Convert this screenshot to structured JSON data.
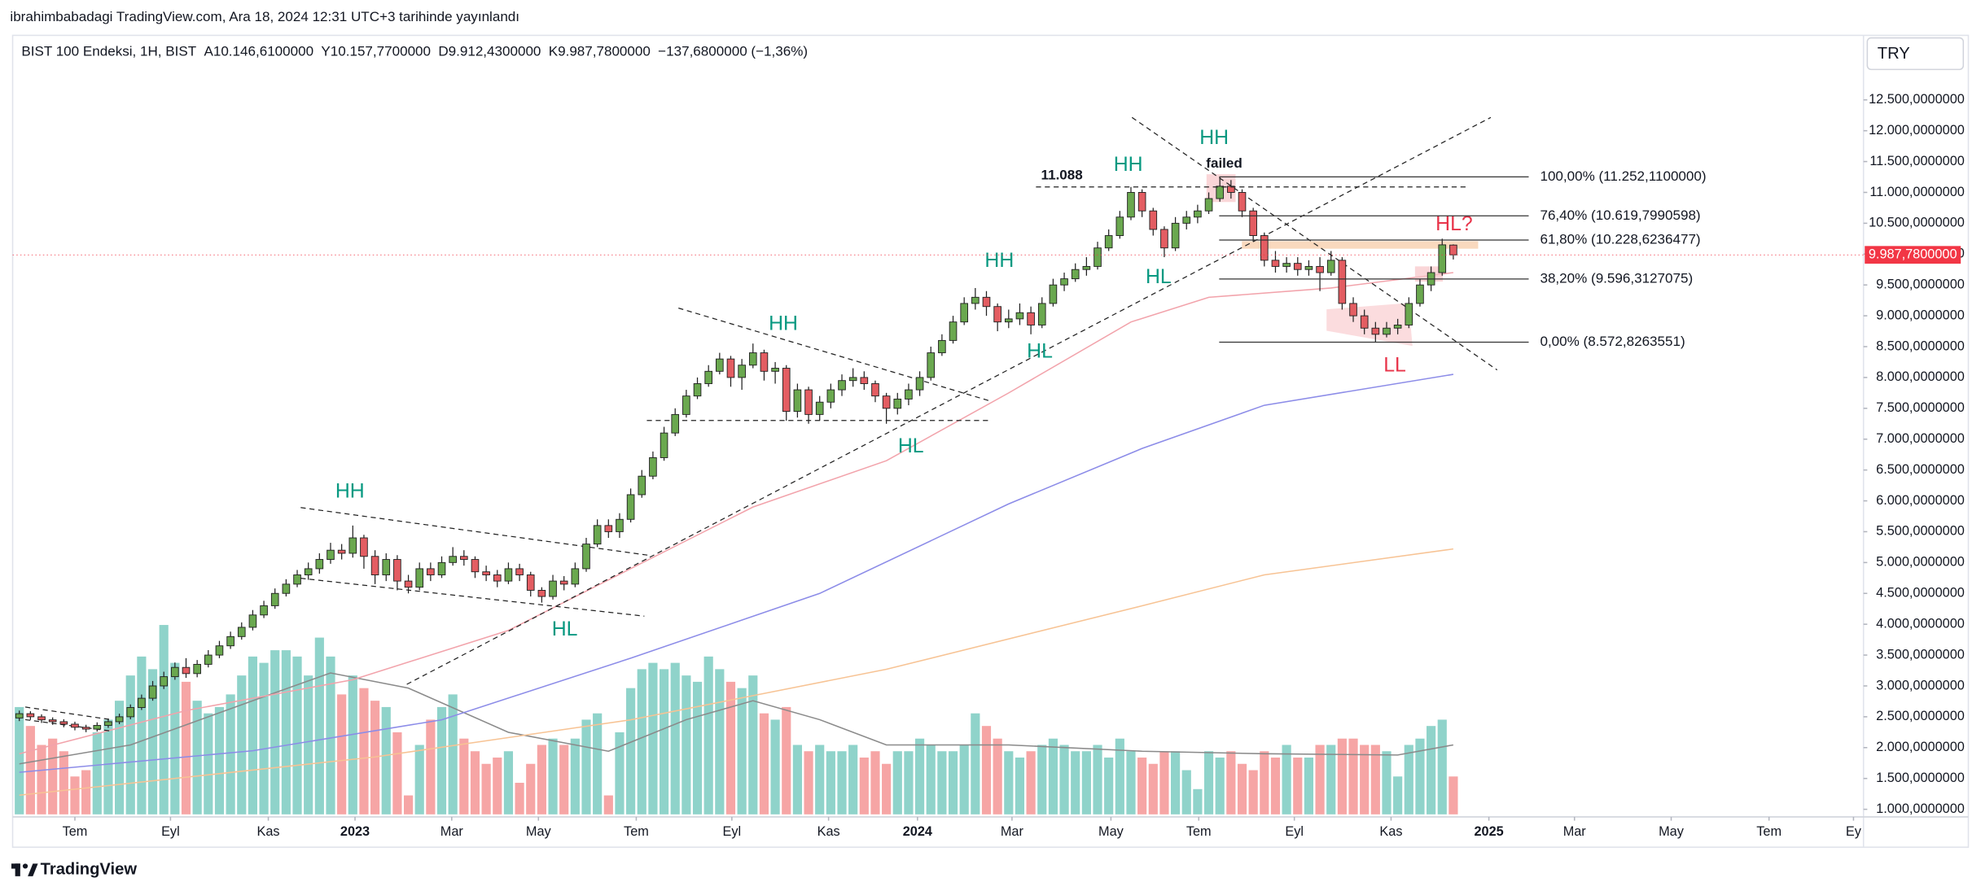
{
  "header": {
    "publisher": "ibrahimbabadagi TradingView.com, Ara 18, 2024 12:31 UTC+3 tarihinde yayınlandı",
    "currency": "TRY",
    "brand": "TradingView"
  },
  "chart_data": {
    "type": "candlestick",
    "title": "BIST 100 Endeksi, 1H, BIST",
    "ohlc_legend": [
      {
        "label": "A",
        "value": "10.146,6100000"
      },
      {
        "label": "Y",
        "value": "10.157,7700000"
      },
      {
        "label": "D",
        "value": "9.912,4300000"
      },
      {
        "label": "K",
        "value": "9.987,7800000"
      }
    ],
    "change": "−137,6800000 (−1,36%)",
    "up_color": "#6aa84f",
    "down_color": "#e35d62",
    "candles": [
      [
        2480,
        2600,
        2430,
        2550
      ],
      [
        2550,
        2590,
        2450,
        2500
      ],
      [
        2500,
        2540,
        2400,
        2450
      ],
      [
        2450,
        2490,
        2370,
        2420
      ],
      [
        2420,
        2460,
        2330,
        2380
      ],
      [
        2380,
        2420,
        2280,
        2330
      ],
      [
        2330,
        2370,
        2250,
        2300
      ],
      [
        2300,
        2410,
        2260,
        2360
      ],
      [
        2360,
        2470,
        2320,
        2420
      ],
      [
        2420,
        2550,
        2380,
        2500
      ],
      [
        2500,
        2700,
        2460,
        2650
      ],
      [
        2650,
        2860,
        2610,
        2800
      ],
      [
        2800,
        3080,
        2760,
        3000
      ],
      [
        3000,
        3230,
        2950,
        3150
      ],
      [
        3150,
        3380,
        3100,
        3300
      ],
      [
        3300,
        3450,
        3130,
        3200
      ],
      [
        3200,
        3420,
        3140,
        3350
      ],
      [
        3350,
        3580,
        3300,
        3500
      ],
      [
        3500,
        3730,
        3450,
        3650
      ],
      [
        3650,
        3880,
        3600,
        3800
      ],
      [
        3800,
        4030,
        3750,
        3950
      ],
      [
        3950,
        4230,
        3900,
        4150
      ],
      [
        4150,
        4380,
        4100,
        4300
      ],
      [
        4300,
        4580,
        4250,
        4500
      ],
      [
        4500,
        4730,
        4450,
        4650
      ],
      [
        4650,
        4880,
        4600,
        4800
      ],
      [
        4800,
        5000,
        4720,
        4900
      ],
      [
        4900,
        5150,
        4820,
        5050
      ],
      [
        5050,
        5320,
        4980,
        5200
      ],
      [
        5200,
        5300,
        5050,
        5150
      ],
      [
        5150,
        5600,
        5080,
        5400
      ],
      [
        5400,
        5450,
        4900,
        5100
      ],
      [
        5100,
        5200,
        4650,
        4800
      ],
      [
        4800,
        5150,
        4700,
        5050
      ],
      [
        5050,
        5120,
        4550,
        4700
      ],
      [
        4700,
        4800,
        4500,
        4600
      ],
      [
        4600,
        5000,
        4550,
        4900
      ],
      [
        4900,
        5000,
        4700,
        4800
      ],
      [
        4800,
        5100,
        4750,
        5000
      ],
      [
        5000,
        5250,
        4950,
        5100
      ],
      [
        5100,
        5200,
        4950,
        5050
      ],
      [
        5050,
        5100,
        4750,
        4850
      ],
      [
        4850,
        4950,
        4700,
        4800
      ],
      [
        4800,
        4880,
        4600,
        4700
      ],
      [
        4700,
        5000,
        4650,
        4900
      ],
      [
        4900,
        4980,
        4700,
        4800
      ],
      [
        4800,
        4850,
        4450,
        4550
      ],
      [
        4550,
        4600,
        4350,
        4450
      ],
      [
        4450,
        4800,
        4400,
        4700
      ],
      [
        4700,
        4780,
        4550,
        4650
      ],
      [
        4650,
        5000,
        4600,
        4900
      ],
      [
        4900,
        5400,
        4850,
        5300
      ],
      [
        5300,
        5700,
        5250,
        5600
      ],
      [
        5600,
        5700,
        5400,
        5500
      ],
      [
        5500,
        5800,
        5400,
        5700
      ],
      [
        5700,
        6200,
        5650,
        6100
      ],
      [
        6100,
        6500,
        6050,
        6400
      ],
      [
        6400,
        6800,
        6350,
        6700
      ],
      [
        6700,
        7200,
        6650,
        7100
      ],
      [
        7100,
        7500,
        7050,
        7400
      ],
      [
        7400,
        7800,
        7350,
        7700
      ],
      [
        7700,
        8000,
        7650,
        7900
      ],
      [
        7900,
        8200,
        7850,
        8100
      ],
      [
        8100,
        8400,
        8050,
        8300
      ],
      [
        8300,
        8350,
        7850,
        8000
      ],
      [
        8000,
        8300,
        7800,
        8200
      ],
      [
        8200,
        8550,
        8150,
        8400
      ],
      [
        8400,
        8450,
        7950,
        8100
      ],
      [
        8100,
        8250,
        7900,
        8150
      ],
      [
        8150,
        8200,
        7300,
        7450
      ],
      [
        7450,
        7900,
        7350,
        7800
      ],
      [
        7800,
        7850,
        7250,
        7400
      ],
      [
        7400,
        7700,
        7300,
        7600
      ],
      [
        7600,
        7900,
        7500,
        7800
      ],
      [
        7800,
        8050,
        7700,
        7950
      ],
      [
        7950,
        8150,
        7850,
        8000
      ],
      [
        8000,
        8100,
        7800,
        7900
      ],
      [
        7900,
        7950,
        7600,
        7700
      ],
      [
        7700,
        7750,
        7250,
        7500
      ],
      [
        7500,
        7750,
        7400,
        7650
      ],
      [
        7650,
        7900,
        7550,
        7800
      ],
      [
        7800,
        8100,
        7700,
        8000
      ],
      [
        8000,
        8500,
        7950,
        8400
      ],
      [
        8400,
        8700,
        8350,
        8600
      ],
      [
        8600,
        9000,
        8550,
        8900
      ],
      [
        8900,
        9300,
        8850,
        9200
      ],
      [
        9200,
        9450,
        9100,
        9300
      ],
      [
        9300,
        9400,
        9000,
        9150
      ],
      [
        9150,
        9200,
        8750,
        8900
      ],
      [
        8900,
        9100,
        8800,
        8950
      ],
      [
        8950,
        9200,
        8850,
        9050
      ],
      [
        9050,
        9150,
        8700,
        8850
      ],
      [
        8850,
        9300,
        8800,
        9200
      ],
      [
        9200,
        9600,
        9150,
        9500
      ],
      [
        9500,
        9700,
        9400,
        9600
      ],
      [
        9600,
        9850,
        9550,
        9750
      ],
      [
        9750,
        9950,
        9650,
        9800
      ],
      [
        9800,
        10200,
        9750,
        10100
      ],
      [
        10100,
        10400,
        10050,
        10300
      ],
      [
        10300,
        10700,
        10250,
        10600
      ],
      [
        10600,
        11088,
        10550,
        11000
      ],
      [
        11000,
        11050,
        10600,
        10700
      ],
      [
        10700,
        10750,
        10300,
        10400
      ],
      [
        10400,
        10450,
        9950,
        10100
      ],
      [
        10100,
        10600,
        10050,
        10500
      ],
      [
        10500,
        10700,
        10400,
        10600
      ],
      [
        10600,
        10800,
        10500,
        10700
      ],
      [
        10700,
        11000,
        10650,
        10900
      ],
      [
        10900,
        11252.11,
        10850,
        11100
      ],
      [
        11100,
        11200,
        10900,
        11000
      ],
      [
        11000,
        11050,
        10600,
        10700
      ],
      [
        10700,
        10750,
        10200,
        10300
      ],
      [
        10300,
        10350,
        9800,
        9900
      ],
      [
        9900,
        10050,
        9700,
        9800
      ],
      [
        9800,
        9950,
        9700,
        9850
      ],
      [
        9850,
        9950,
        9650,
        9750
      ],
      [
        9750,
        9900,
        9650,
        9800
      ],
      [
        9800,
        9950,
        9400,
        9700
      ],
      [
        9700,
        10050,
        9650,
        9900
      ],
      [
        9900,
        9950,
        9100,
        9200
      ],
      [
        9200,
        9300,
        8900,
        9000
      ],
      [
        9000,
        9100,
        8700,
        8800
      ],
      [
        8800,
        8900,
        8572.83,
        8700
      ],
      [
        8700,
        8900,
        8650,
        8800
      ],
      [
        8800,
        8950,
        8700,
        8850
      ],
      [
        8850,
        9300,
        8800,
        9200
      ],
      [
        9200,
        9600,
        9150,
        9500
      ],
      [
        9500,
        9800,
        9400,
        9700
      ],
      [
        9700,
        10250,
        9650,
        10150
      ],
      [
        10146.61,
        10157.77,
        9912.43,
        9987.78
      ]
    ],
    "volume": [
      85,
      70,
      55,
      60,
      50,
      30,
      35,
      65,
      75,
      90,
      110,
      125,
      115,
      150,
      120,
      105,
      90,
      80,
      85,
      95,
      110,
      125,
      120,
      130,
      130,
      125,
      110,
      140,
      125,
      95,
      110,
      100,
      90,
      85,
      65,
      15,
      55,
      75,
      85,
      95,
      60,
      50,
      40,
      45,
      50,
      25,
      40,
      55,
      60,
      55,
      60,
      75,
      80,
      15,
      65,
      100,
      115,
      120,
      115,
      120,
      110,
      105,
      125,
      115,
      105,
      100,
      110,
      80,
      75,
      85,
      55,
      50,
      55,
      50,
      50,
      55,
      45,
      50,
      40,
      50,
      50,
      60,
      55,
      50,
      50,
      55,
      80,
      70,
      60,
      50,
      45,
      50,
      55,
      60,
      55,
      50,
      50,
      55,
      45,
      60,
      50,
      45,
      40,
      50,
      50,
      35,
      20,
      50,
      45,
      50,
      40,
      35,
      50,
      45,
      55,
      45,
      45,
      55,
      55,
      60,
      60,
      55,
      55,
      50,
      30,
      55,
      60,
      70,
      75,
      30
    ],
    "vlim": [
      0,
      160
    ],
    "volume_up_color": "#8fd3ca",
    "volume_down_color": "#f6a5a5",
    "xlim": [
      -0.6,
      165.9
    ],
    "xticks": [
      {
        "value": 5,
        "label": "Tem"
      },
      {
        "value": 13.6,
        "label": "Eyl"
      },
      {
        "value": 22.4,
        "label": "Kas"
      },
      {
        "value": 30.2,
        "label": "2023"
      },
      {
        "value": 38.9,
        "label": "Mar"
      },
      {
        "value": 46.7,
        "label": "May"
      },
      {
        "value": 55.5,
        "label": "Tem"
      },
      {
        "value": 64.1,
        "label": "Eyl"
      },
      {
        "value": 72.8,
        "label": "Kas"
      },
      {
        "value": 80.8,
        "label": "2024"
      },
      {
        "value": 89.3,
        "label": "Mar"
      },
      {
        "value": 98.2,
        "label": "May"
      },
      {
        "value": 106.1,
        "label": "Tem"
      },
      {
        "value": 114.7,
        "label": "Eyl"
      },
      {
        "value": 123.4,
        "label": "Kas"
      },
      {
        "value": 132.2,
        "label": "2025"
      },
      {
        "value": 139.9,
        "label": "Mar"
      },
      {
        "value": 148.6,
        "label": "May"
      },
      {
        "value": 157.4,
        "label": "Tem"
      },
      {
        "value": 165,
        "label": "Ey"
      }
    ],
    "ylim": [
      918,
      13505
    ],
    "yticks": [
      {
        "value": 1000,
        "label": "1.000,0000000"
      },
      {
        "value": 1500,
        "label": "1.500,0000000"
      },
      {
        "value": 2000,
        "label": "2.000,0000000"
      },
      {
        "value": 2500,
        "label": "2.500,0000000"
      },
      {
        "value": 3000,
        "label": "3.000,0000000"
      },
      {
        "value": 3500,
        "label": "3.500,0000000"
      },
      {
        "value": 4000,
        "label": "4.000,0000000"
      },
      {
        "value": 4500,
        "label": "4.500,0000000"
      },
      {
        "value": 5000,
        "label": "5.000,0000000"
      },
      {
        "value": 5500,
        "label": "5.500,0000000"
      },
      {
        "value": 6000,
        "label": "6.000,0000000"
      },
      {
        "value": 6500,
        "label": "6.500,0000000"
      },
      {
        "value": 7000,
        "label": "7.000,0000000"
      },
      {
        "value": 7500,
        "label": "7.500,0000000"
      },
      {
        "value": 8000,
        "label": "8.000,0000000"
      },
      {
        "value": 8500,
        "label": "8.500,0000000"
      },
      {
        "value": 9000,
        "label": "9.000,0000000"
      },
      {
        "value": 9500,
        "label": "9.500,0000000"
      },
      {
        "value": 10000,
        "label": "10.000,0000000"
      },
      {
        "value": 10500,
        "label": "10.500,0000000"
      },
      {
        "value": 11000,
        "label": "11.000,0000000"
      },
      {
        "value": 11500,
        "label": "11.500,0000000"
      },
      {
        "value": 12000,
        "label": "12.000,0000000"
      },
      {
        "value": 12500,
        "label": "12.500,0000000"
      }
    ],
    "last_price": {
      "value": 9987.78,
      "label": "9.987,7800000",
      "color": "#f23645"
    },
    "moving_averages": [
      {
        "color": "#f2a3ab",
        "x": [
          0,
          15,
          30,
          44,
          55,
          66,
          78,
          89,
          100,
          107,
          118,
          129
        ],
        "values": [
          1900,
          2600,
          3100,
          3900,
          4900,
          5900,
          6650,
          7750,
          8900,
          9300,
          9450,
          9700
        ]
      },
      {
        "color": "#8c8ce8",
        "x": [
          0,
          21,
          38,
          55,
          72,
          89,
          101,
          112,
          129
        ],
        "values": [
          1600,
          1950,
          2450,
          3450,
          4500,
          5950,
          6850,
          7550,
          8050
        ]
      },
      {
        "color": "#f7c394",
        "x": [
          0,
          32,
          55,
          78,
          101,
          112,
          129
        ],
        "values": [
          1230,
          1850,
          2450,
          3270,
          4300,
          4800,
          5220
        ]
      }
    ],
    "volume_ma": {
      "color": "#8a8a8a",
      "x": [
        0,
        10,
        21,
        28,
        35,
        44,
        53,
        60,
        66,
        72,
        78,
        89,
        101,
        112,
        124,
        129
      ],
      "values": [
        40,
        55,
        90,
        112,
        100,
        65,
        50,
        75,
        90,
        75,
        55,
        55,
        50,
        48,
        47,
        55
      ]
    },
    "fib_levels": [
      {
        "value": 11252.11,
        "label": "100,00% (11.252,1100000)"
      },
      {
        "value": 10619.7990598,
        "label": "76,40% (10.619,7990598)"
      },
      {
        "value": 10228.6236477,
        "label": "61,80% (10.228,6236477)"
      },
      {
        "value": 9596.3127075,
        "label": "38,20% (9.596,3127075)"
      },
      {
        "value": 8572.8263551,
        "label": "0,00% (8.572,8263551)"
      }
    ],
    "resistance": {
      "value": 11088,
      "label": "11.088"
    },
    "annotations": [
      "HH",
      "HH",
      "HH",
      "HH",
      "HH",
      "HL",
      "HL",
      "HL",
      "HL",
      "LL",
      "HL?",
      "failed"
    ]
  }
}
